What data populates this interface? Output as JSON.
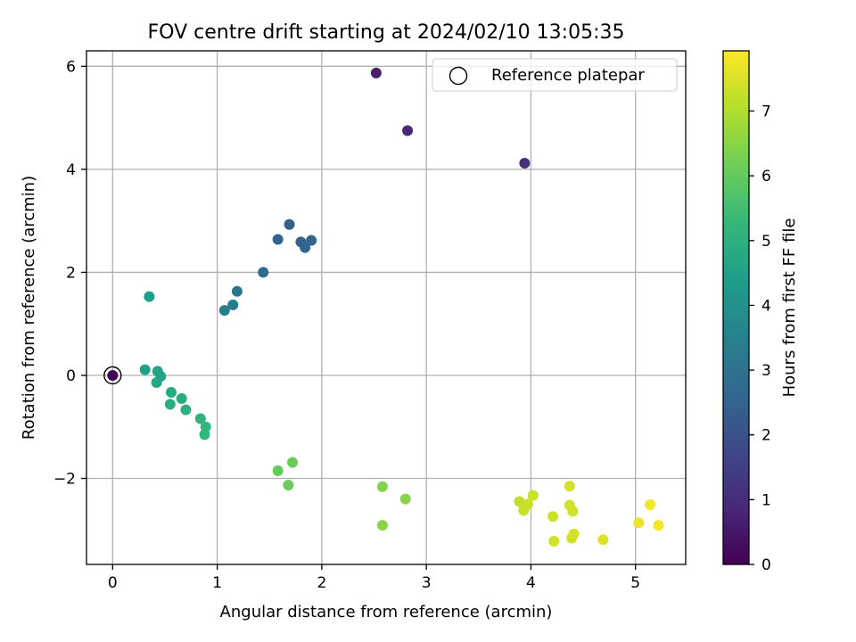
{
  "chart_data": {
    "type": "scatter",
    "title": "FOV centre drift starting at 2024/02/10 13:05:35",
    "xlabel": "Angular distance from reference (arcmin)",
    "ylabel": "Rotation from reference (arcmin)",
    "xlim": [
      -0.25,
      5.48
    ],
    "ylim": [
      -3.67,
      6.3
    ],
    "xticks": [
      0,
      1,
      2,
      3,
      4,
      5
    ],
    "xtick_labels": [
      "0",
      "1",
      "2",
      "3",
      "4",
      "5"
    ],
    "yticks": [
      -2,
      0,
      2,
      4,
      6
    ],
    "ytick_labels": [
      "−2",
      "0",
      "2",
      "4",
      "6"
    ],
    "grid": true,
    "legend": {
      "label": "Reference platepar",
      "position": "top-right"
    },
    "reference_point": {
      "x": 0,
      "y": 0,
      "hours": 0
    },
    "colorbar": {
      "label": "Hours from first FF file",
      "colormap": "viridis",
      "range": [
        0,
        7.93
      ],
      "ticks": [
        0,
        1,
        2,
        3,
        4,
        5,
        6,
        7
      ],
      "tick_labels": [
        "0",
        "1",
        "2",
        "3",
        "4",
        "5",
        "6",
        "7"
      ],
      "stops": [
        "#440154",
        "#482878",
        "#3e4989",
        "#31688e",
        "#26828e",
        "#1f9e89",
        "#35b779",
        "#6ece58",
        "#b5de2b",
        "#fde725"
      ]
    },
    "points": [
      {
        "x": 0.0,
        "y": 0.0,
        "hours": 0.0
      },
      {
        "x": 2.52,
        "y": 5.87,
        "hours": 0.7
      },
      {
        "x": 2.82,
        "y": 4.75,
        "hours": 0.9
      },
      {
        "x": 3.94,
        "y": 4.12,
        "hours": 1.1
      },
      {
        "x": 1.69,
        "y": 2.93,
        "hours": 2.4
      },
      {
        "x": 1.58,
        "y": 2.64,
        "hours": 2.5
      },
      {
        "x": 1.8,
        "y": 2.59,
        "hours": 2.5
      },
      {
        "x": 1.9,
        "y": 2.62,
        "hours": 2.6
      },
      {
        "x": 1.84,
        "y": 2.48,
        "hours": 2.6
      },
      {
        "x": 1.44,
        "y": 2.0,
        "hours": 2.8
      },
      {
        "x": 1.19,
        "y": 1.63,
        "hours": 3.1
      },
      {
        "x": 1.15,
        "y": 1.37,
        "hours": 3.3
      },
      {
        "x": 1.07,
        "y": 1.26,
        "hours": 3.4
      },
      {
        "x": 0.35,
        "y": 1.53,
        "hours": 4.4
      },
      {
        "x": 0.31,
        "y": 0.11,
        "hours": 4.5
      },
      {
        "x": 0.43,
        "y": 0.08,
        "hours": 4.6
      },
      {
        "x": 0.46,
        "y": -0.02,
        "hours": 4.6
      },
      {
        "x": 0.42,
        "y": -0.14,
        "hours": 4.7
      },
      {
        "x": 0.56,
        "y": -0.33,
        "hours": 4.8
      },
      {
        "x": 0.66,
        "y": -0.45,
        "hours": 4.9
      },
      {
        "x": 0.55,
        "y": -0.56,
        "hours": 4.9
      },
      {
        "x": 0.7,
        "y": -0.67,
        "hours": 5.0
      },
      {
        "x": 0.84,
        "y": -0.84,
        "hours": 5.1
      },
      {
        "x": 0.89,
        "y": -1.0,
        "hours": 5.2
      },
      {
        "x": 0.88,
        "y": -1.15,
        "hours": 5.2
      },
      {
        "x": 1.58,
        "y": -1.85,
        "hours": 6.0
      },
      {
        "x": 1.72,
        "y": -1.69,
        "hours": 6.1
      },
      {
        "x": 1.68,
        "y": -2.13,
        "hours": 6.1
      },
      {
        "x": 2.58,
        "y": -2.16,
        "hours": 6.4
      },
      {
        "x": 2.8,
        "y": -2.4,
        "hours": 6.5
      },
      {
        "x": 2.58,
        "y": -2.91,
        "hours": 6.5
      },
      {
        "x": 3.89,
        "y": -2.45,
        "hours": 7.2
      },
      {
        "x": 3.93,
        "y": -2.62,
        "hours": 7.3
      },
      {
        "x": 3.97,
        "y": -2.5,
        "hours": 7.3
      },
      {
        "x": 4.02,
        "y": -2.33,
        "hours": 7.3
      },
      {
        "x": 4.21,
        "y": -2.74,
        "hours": 7.3
      },
      {
        "x": 4.22,
        "y": -3.22,
        "hours": 7.4
      },
      {
        "x": 4.37,
        "y": -2.15,
        "hours": 7.4
      },
      {
        "x": 4.37,
        "y": -2.52,
        "hours": 7.4
      },
      {
        "x": 4.4,
        "y": -2.64,
        "hours": 7.4
      },
      {
        "x": 4.39,
        "y": -3.16,
        "hours": 7.4
      },
      {
        "x": 4.41,
        "y": -3.08,
        "hours": 7.4
      },
      {
        "x": 4.69,
        "y": -3.19,
        "hours": 7.5
      },
      {
        "x": 5.03,
        "y": -2.86,
        "hours": 7.7
      },
      {
        "x": 5.14,
        "y": -2.51,
        "hours": 7.8
      },
      {
        "x": 5.22,
        "y": -2.91,
        "hours": 7.8
      }
    ]
  }
}
